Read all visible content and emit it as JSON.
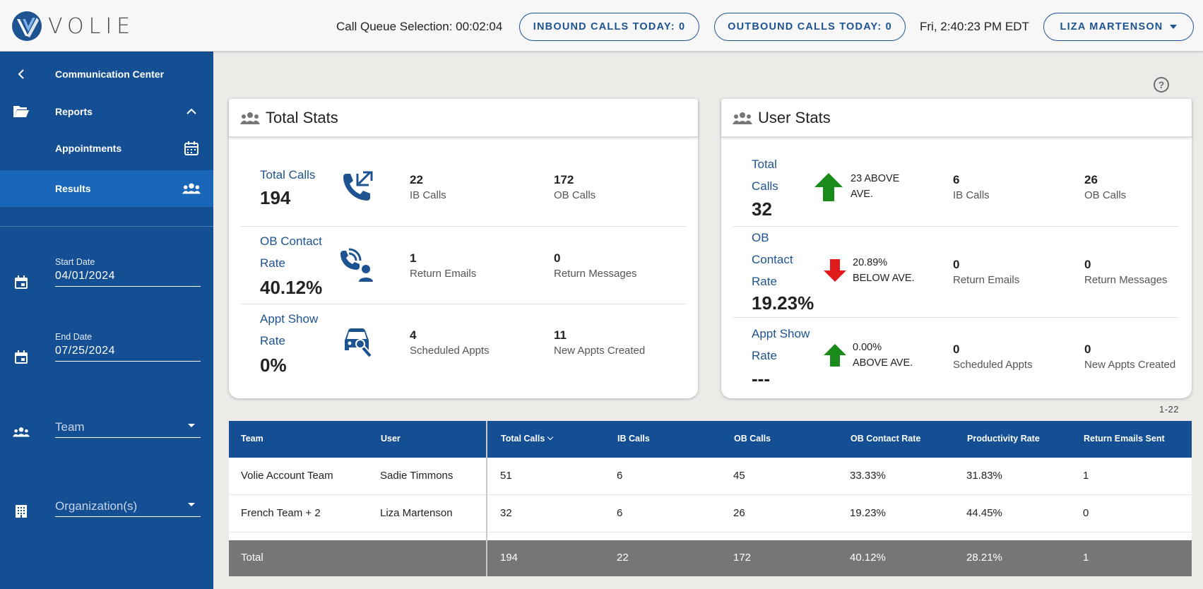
{
  "header": {
    "brand": "VOLIE",
    "queue_text": "Call Queue Selection: 00:02:04",
    "inbound_label": "INBOUND CALLS TODAY: 0",
    "outbound_label": "OUTBOUND CALLS TODAY: 0",
    "clock": "Fri, 2:40:23 PM EDT",
    "user_name": "LIZA MARTENSON"
  },
  "sidebar": {
    "back_label": "Communication Center",
    "reports_label": "Reports",
    "appointments_label": "Appointments",
    "results_label": "Results",
    "start_date": {
      "label": "Start Date",
      "value": "04/01/2024"
    },
    "end_date": {
      "label": "End Date",
      "value": "07/25/2024"
    },
    "team_placeholder": "Team",
    "org_placeholder": "Organization(s)"
  },
  "help_icon": "?",
  "total_stats": {
    "title": "Total Stats",
    "rows": [
      {
        "label": "Total Calls",
        "value": "194",
        "icon": "phone-transfer-icon",
        "a_num": "22",
        "a_label": "IB Calls",
        "b_num": "172",
        "b_label": "OB Calls"
      },
      {
        "label": "OB Contact Rate",
        "label_l1": "OB Contact",
        "label_l2": "Rate",
        "value": "40.12%",
        "icon": "contact-signal-icon",
        "a_num": "1",
        "a_label": "Return Emails",
        "b_num": "0",
        "b_label": "Return Messages"
      },
      {
        "label": "Appt Show Rate",
        "label_l1": "Appt Show",
        "label_l2": "Rate",
        "value": "0%",
        "icon": "car-service-icon",
        "a_num": "4",
        "a_label": "Scheduled Appts",
        "b_num": "11",
        "b_label": "New Appts Created"
      }
    ]
  },
  "user_stats": {
    "title": "User Stats",
    "rows": [
      {
        "label_l1": "Total",
        "label_l2": "Calls",
        "value": "32",
        "trend": "up",
        "trend_l1": "23 ABOVE",
        "trend_l2": "AVE.",
        "a_num": "6",
        "a_label": "IB Calls",
        "b_num": "26",
        "b_label": "OB Calls"
      },
      {
        "label_l1": "OB",
        "label_l2": "Contact",
        "label_l3": "Rate",
        "value": "19.23%",
        "trend": "down",
        "trend_l1": "20.89%",
        "trend_l2": "BELOW AVE.",
        "a_num": "0",
        "a_label": "Return Emails",
        "b_num": "0",
        "b_label": "Return Messages"
      },
      {
        "label_l1": "Appt Show",
        "label_l2": "Rate",
        "value": "---",
        "trend": "up",
        "trend_l1": "0.00%",
        "trend_l2": "ABOVE AVE.",
        "a_num": "0",
        "a_label": "Scheduled Appts",
        "b_num": "0",
        "b_label": "New Appts Created"
      }
    ]
  },
  "colors": {
    "primary": "#144f94",
    "accent_text": "#1e5391",
    "up_arrow": "#1a8a1a",
    "down_arrow": "#e11b1b",
    "footer_bg": "#767676"
  },
  "table": {
    "range": "1-22",
    "columns": [
      "Team",
      "User",
      "Total Calls",
      "IB Calls",
      "OB Calls",
      "OB Contact Rate",
      "Productivity Rate",
      "Return Emails Sent"
    ],
    "rows": [
      [
        "Volie Account Team",
        "Sadie Timmons",
        "51",
        "6",
        "45",
        "33.33%",
        "31.83%",
        "1"
      ],
      [
        "French Team + 2",
        "Liza Martenson",
        "32",
        "6",
        "26",
        "19.23%",
        "44.45%",
        "0"
      ]
    ],
    "total": [
      "Total",
      "",
      "194",
      "22",
      "172",
      "40.12%",
      "28.21%",
      "1"
    ]
  }
}
